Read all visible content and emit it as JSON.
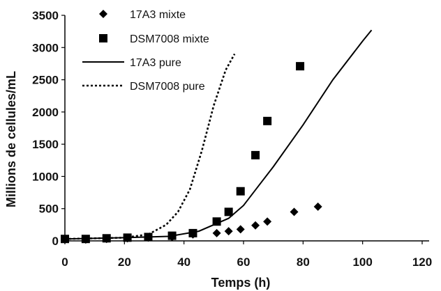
{
  "chart_data": {
    "type": "scatter",
    "xlabel": "Temps (h)",
    "ylabel": "Millions de cellules/mL",
    "xlim": [
      0,
      120
    ],
    "ylim": [
      0,
      3500
    ],
    "x_ticks": [
      0,
      20,
      40,
      60,
      80,
      100,
      120
    ],
    "y_ticks": [
      0,
      500,
      1000,
      1500,
      2000,
      2500,
      3000,
      3500
    ],
    "grid": false,
    "legend_position": "top-left",
    "series": [
      {
        "name": "17A3 mixte",
        "marker": "diamond",
        "color": "#000000",
        "points": [
          {
            "x": 0,
            "y": 20
          },
          {
            "x": 7,
            "y": 20
          },
          {
            "x": 14,
            "y": 30
          },
          {
            "x": 21,
            "y": 40
          },
          {
            "x": 28,
            "y": 50
          },
          {
            "x": 36,
            "y": 60
          },
          {
            "x": 43,
            "y": 100
          },
          {
            "x": 51,
            "y": 120
          },
          {
            "x": 55,
            "y": 150
          },
          {
            "x": 59,
            "y": 180
          },
          {
            "x": 64,
            "y": 240
          },
          {
            "x": 68,
            "y": 300
          },
          {
            "x": 77,
            "y": 450
          },
          {
            "x": 85,
            "y": 530
          }
        ]
      },
      {
        "name": "DSM7008 mixte",
        "marker": "square",
        "color": "#000000",
        "points": [
          {
            "x": 0,
            "y": 30
          },
          {
            "x": 7,
            "y": 30
          },
          {
            "x": 14,
            "y": 40
          },
          {
            "x": 21,
            "y": 50
          },
          {
            "x": 28,
            "y": 60
          },
          {
            "x": 36,
            "y": 80
          },
          {
            "x": 43,
            "y": 120
          },
          {
            "x": 51,
            "y": 300
          },
          {
            "x": 55,
            "y": 450
          },
          {
            "x": 59,
            "y": 770
          },
          {
            "x": 64,
            "y": 1330
          },
          {
            "x": 68,
            "y": 1860
          },
          {
            "x": 79,
            "y": 2710
          }
        ]
      },
      {
        "name": "17A3 pure",
        "line_style": "solid",
        "color": "#000000",
        "points": [
          {
            "x": 0,
            "y": 30
          },
          {
            "x": 20,
            "y": 50
          },
          {
            "x": 35,
            "y": 70
          },
          {
            "x": 45,
            "y": 150
          },
          {
            "x": 55,
            "y": 350
          },
          {
            "x": 60,
            "y": 550
          },
          {
            "x": 65,
            "y": 850
          },
          {
            "x": 70,
            "y": 1150
          },
          {
            "x": 80,
            "y": 1800
          },
          {
            "x": 90,
            "y": 2500
          },
          {
            "x": 100,
            "y": 3100
          },
          {
            "x": 103,
            "y": 3270
          }
        ]
      },
      {
        "name": "DSM7008 pure",
        "line_style": "dotted",
        "color": "#000000",
        "points": [
          {
            "x": 0,
            "y": 30
          },
          {
            "x": 20,
            "y": 50
          },
          {
            "x": 28,
            "y": 100
          },
          {
            "x": 34,
            "y": 250
          },
          {
            "x": 38,
            "y": 450
          },
          {
            "x": 42,
            "y": 800
          },
          {
            "x": 46,
            "y": 1400
          },
          {
            "x": 50,
            "y": 2100
          },
          {
            "x": 54,
            "y": 2650
          },
          {
            "x": 57,
            "y": 2900
          }
        ]
      }
    ]
  }
}
